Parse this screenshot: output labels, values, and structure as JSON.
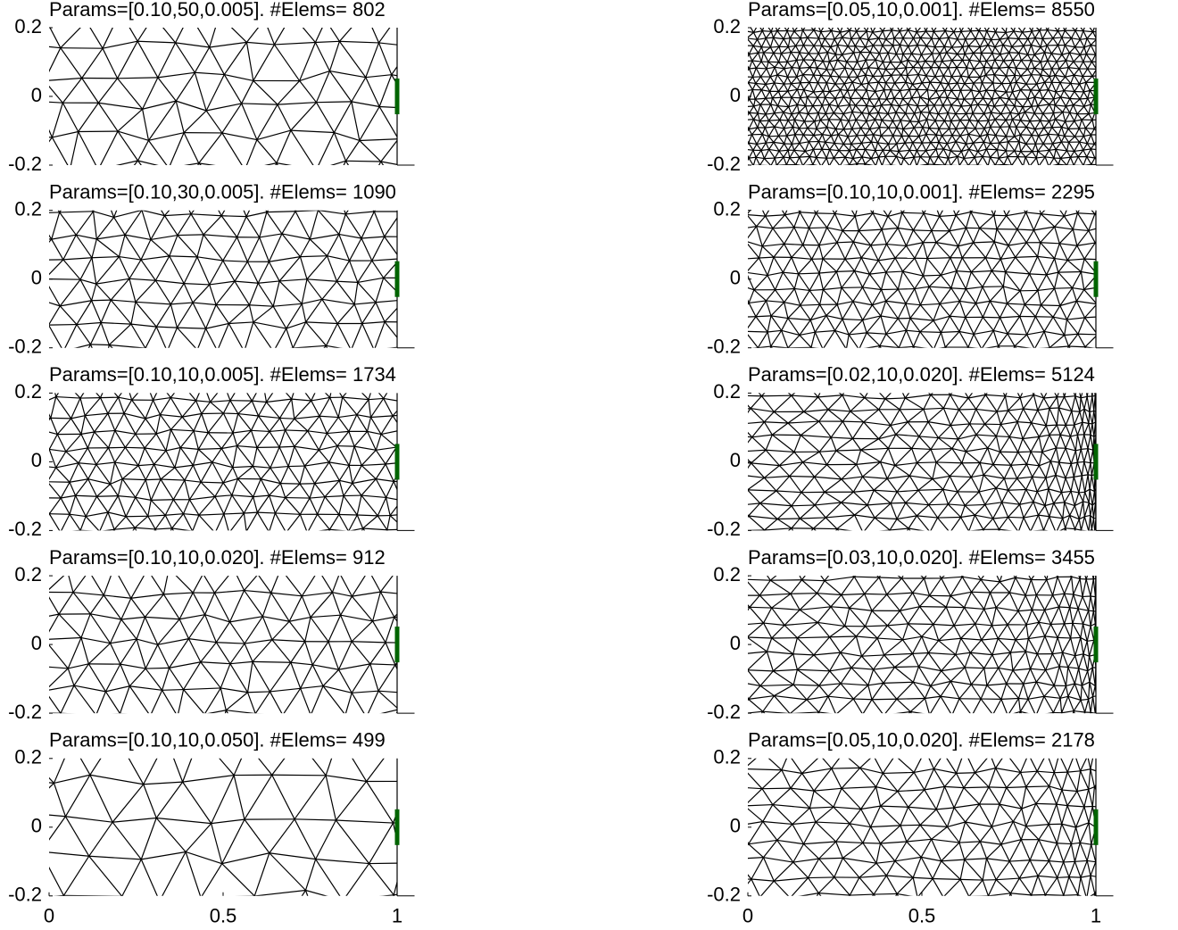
{
  "chart_data": [
    {
      "type": "mesh",
      "title": "Params=[0.10,50,0.005]. #Elems= 802",
      "xlim": [
        0,
        1.05
      ],
      "ylim": [
        -0.2,
        0.2
      ],
      "yticks": [
        0.2,
        0,
        -0.2
      ]
    },
    {
      "type": "mesh",
      "title": "Params=[0.10,30,0.005]. #Elems= 1090",
      "xlim": [
        0,
        1.05
      ],
      "ylim": [
        -0.2,
        0.2
      ],
      "yticks": [
        0.2,
        0,
        -0.2
      ]
    },
    {
      "type": "mesh",
      "title": "Params=[0.10,10,0.005]. #Elems= 1734",
      "xlim": [
        0,
        1.05
      ],
      "ylim": [
        -0.2,
        0.2
      ],
      "yticks": [
        0.2,
        0,
        -0.2
      ]
    },
    {
      "type": "mesh",
      "title": "Params=[0.10,10,0.020]. #Elems= 912",
      "xlim": [
        0,
        1.05
      ],
      "ylim": [
        -0.2,
        0.2
      ],
      "yticks": [
        0.2,
        0,
        -0.2
      ]
    },
    {
      "type": "mesh",
      "title": "Params=[0.10,10,0.050]. #Elems= 499",
      "xlim": [
        0,
        1.05
      ],
      "ylim": [
        -0.2,
        0.2
      ],
      "yticks": [
        0.2,
        0,
        -0.2
      ],
      "xticks": [
        0,
        0.5,
        1
      ]
    },
    {
      "type": "mesh",
      "title": "Params=[0.05,10,0.001]. #Elems= 8550",
      "xlim": [
        0,
        1.05
      ],
      "ylim": [
        -0.2,
        0.2
      ],
      "yticks": [
        0.2,
        0,
        -0.2
      ]
    },
    {
      "type": "mesh",
      "title": "Params=[0.10,10,0.001]. #Elems= 2295",
      "xlim": [
        0,
        1.05
      ],
      "ylim": [
        -0.2,
        0.2
      ],
      "yticks": [
        0.2,
        0,
        -0.2
      ]
    },
    {
      "type": "mesh",
      "title": "Params=[0.02,10,0.020]. #Elems= 5124",
      "xlim": [
        0,
        1.05
      ],
      "ylim": [
        -0.2,
        0.2
      ],
      "yticks": [
        0.2,
        0,
        -0.2
      ]
    },
    {
      "type": "mesh",
      "title": "Params=[0.03,10,0.020]. #Elems= 3455",
      "xlim": [
        0,
        1.05
      ],
      "ylim": [
        -0.2,
        0.2
      ],
      "yticks": [
        0.2,
        0,
        -0.2
      ]
    },
    {
      "type": "mesh",
      "title": "Params=[0.05,10,0.020]. #Elems= 2178",
      "xlim": [
        0,
        1.05
      ],
      "ylim": [
        -0.2,
        0.2
      ],
      "yticks": [
        0.2,
        0,
        -0.2
      ],
      "xticks": [
        0,
        0.5,
        1
      ]
    }
  ]
}
